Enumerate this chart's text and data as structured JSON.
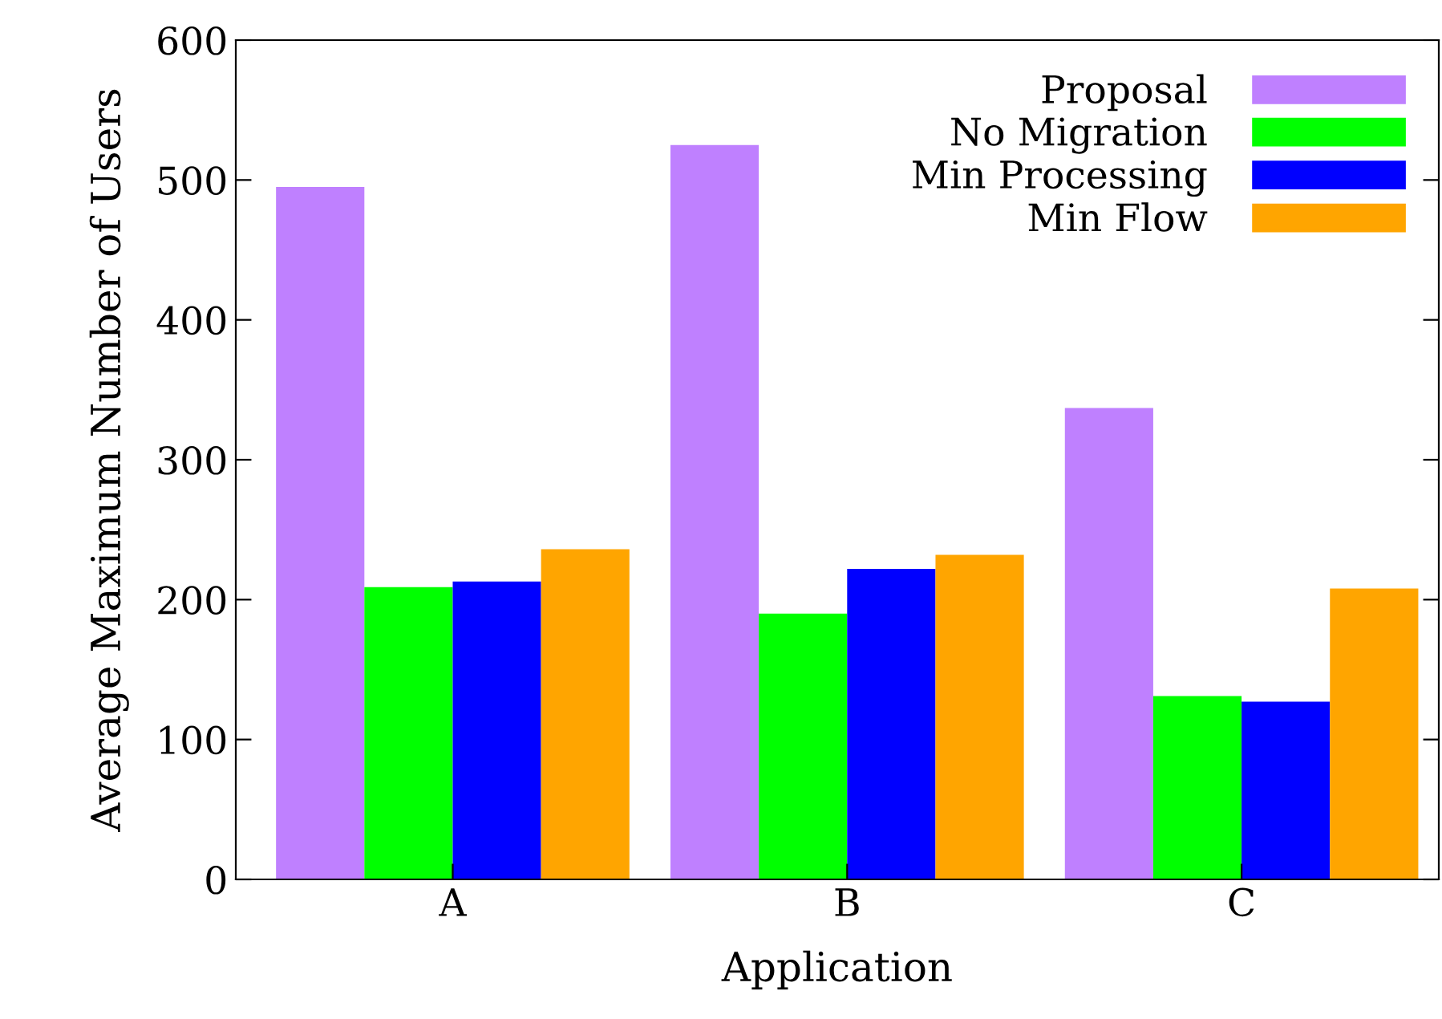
{
  "chart_data": {
    "type": "bar",
    "xlabel": "Application",
    "ylabel": "Average Maximum Number of Users",
    "categories": [
      "A",
      "B",
      "C"
    ],
    "series": [
      {
        "name": "Proposal",
        "color": "#bf80ff",
        "values": [
          495,
          525,
          337
        ]
      },
      {
        "name": "No Migration",
        "color": "#00ff00",
        "values": [
          209,
          190,
          131
        ]
      },
      {
        "name": "Min Processing",
        "color": "#0000ff",
        "values": [
          213,
          222,
          127
        ]
      },
      {
        "name": "Min Flow",
        "color": "#ffa500",
        "values": [
          236,
          232,
          208
        ]
      }
    ],
    "ylim": [
      0,
      600
    ],
    "yticks": [
      0,
      100,
      200,
      300,
      400,
      500,
      600
    ],
    "grid": false,
    "legend": "top right"
  }
}
